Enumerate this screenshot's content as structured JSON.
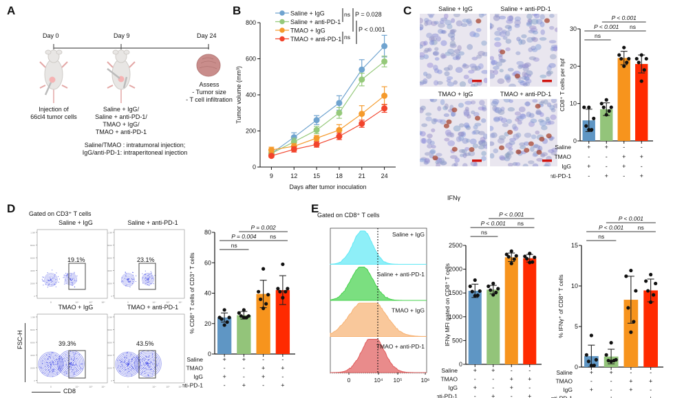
{
  "panel_labels": [
    "A",
    "B",
    "C",
    "D",
    "E"
  ],
  "panelA": {
    "timeline_days": [
      "Day 0",
      "Day 9",
      "Day 24"
    ],
    "step1": [
      "Injection of",
      "66cl4 tumor cells"
    ],
    "step2": [
      "Saline + IgG/",
      "Saline + anti-PD-1/",
      "TMAO + IgG/",
      "TMAO + anti-PD-1"
    ],
    "step3": [
      "Assess",
      "- Tumor size",
      "- T cell infiltration"
    ],
    "note": [
      "Saline/TMAO : intratumoral injection;",
      "IgG/anti-PD-1: intraperitoneal injection"
    ]
  },
  "groups": [
    "Saline + IgG",
    "Saline + anti-PD-1",
    "TMAO + IgG",
    "TMAO + anti-PD-1"
  ],
  "group_colors": {
    "line": [
      "#6fa3cf",
      "#95c97a",
      "#f59a2b",
      "#f2442c"
    ],
    "bar": [
      "#5f96c4",
      "#93c47a",
      "#f7941d",
      "#ff2a00"
    ]
  },
  "treatment_table": {
    "row_labels": [
      "Saline",
      "TMAO",
      "IgG",
      "Anti-PD-1"
    ],
    "rows": [
      [
        "+",
        "+",
        "-",
        "-"
      ],
      [
        "-",
        "-",
        "+",
        "+"
      ],
      [
        "+",
        "-",
        "+",
        "-"
      ],
      [
        "-",
        "+",
        "-",
        "+"
      ]
    ]
  },
  "panelC": {
    "image_titles": [
      "Saline + IgG",
      "Saline + anti-PD-1",
      "TMAO + IgG",
      "TMAO + anti-PD-1"
    ]
  },
  "panelD": {
    "gate_title": "Gated on CD3⁺ T cells",
    "plot_titles": [
      "Saline + IgG",
      "Saline + anti-PD-1",
      "TMAO + IgG",
      "TMAO + anti-PD-1"
    ],
    "percentages": [
      "19.1%",
      "23.1%",
      "39.3%",
      "43.5%"
    ],
    "y_axis": "FSC-H",
    "x_axis": "CD8"
  },
  "panelE": {
    "gate_title": "Gated on CD8⁺ T cells",
    "histogram_labels": [
      "Saline + IgG",
      "Saline + anti-PD-1",
      "TMAO + IgG",
      "TMAO + anti-PD-1"
    ],
    "histogram_colors": [
      "#5ee8f5",
      "#43d14a",
      "#f7b171",
      "#e05a5a"
    ],
    "x_ticks": [
      "0",
      "10⁴",
      "10⁵",
      "10⁶"
    ],
    "x_axis": "IFNγ",
    "section_title": "IFNγ"
  },
  "chart_data": [
    {
      "id": "B",
      "type": "line",
      "title": "",
      "xlabel": "Days after tumor inoculation",
      "ylabel": "Tumor volume (mm³)",
      "x": [
        9,
        12,
        15,
        18,
        21,
        24
      ],
      "xlim": [
        7.5,
        25.5
      ],
      "ylim": [
        0,
        800
      ],
      "yticks": [
        0,
        200,
        400,
        600,
        800
      ],
      "legend_position": "top-left",
      "series": [
        {
          "name": "Saline + IgG",
          "values": [
            75,
            165,
            260,
            355,
            540,
            670
          ],
          "err": [
            10,
            25,
            25,
            40,
            55,
            60
          ]
        },
        {
          "name": "Saline + anti-PD-1",
          "values": [
            75,
            140,
            205,
            300,
            485,
            585
          ],
          "err": [
            10,
            20,
            20,
            30,
            35,
            30
          ]
        },
        {
          "name": "TMAO + IgG",
          "values": [
            95,
            115,
            160,
            205,
            295,
            395
          ],
          "err": [
            15,
            15,
            15,
            30,
            45,
            50
          ]
        },
        {
          "name": "TMAO + anti-PD-1",
          "values": [
            62,
            98,
            125,
            170,
            240,
            325
          ],
          "err": [
            8,
            15,
            15,
            18,
            20,
            22
          ]
        }
      ],
      "annotations": [
        {
          "text": "ns",
          "between": [
            "Saline + IgG",
            "Saline + anti-PD-1"
          ]
        },
        {
          "text": "P = 0.028",
          "between": [
            "Saline + IgG",
            "TMAO + IgG"
          ]
        },
        {
          "text": "P < 0.001",
          "between": [
            "Saline + anti-PD-1",
            "TMAO + anti-PD-1"
          ]
        },
        {
          "text": "ns",
          "between": [
            "TMAO + IgG",
            "TMAO + anti-PD-1"
          ]
        }
      ]
    },
    {
      "id": "C",
      "type": "bar",
      "ylabel": "CD8⁺ T cells per hpf",
      "categories": [
        "Saline + IgG",
        "Saline + anti-PD-1",
        "TMAO + IgG",
        "TMAO + anti-PD-1"
      ],
      "values": [
        5.5,
        8.5,
        22.2,
        20.6
      ],
      "err": [
        3.0,
        1.7,
        1.8,
        2.4
      ],
      "points": [
        [
          9,
          9,
          6,
          4,
          3,
          3
        ],
        [
          11,
          10,
          9,
          9,
          8,
          7
        ],
        [
          25,
          23,
          22,
          22,
          21,
          20
        ],
        [
          23,
          22,
          22,
          21,
          19,
          16
        ]
      ],
      "ylim": [
        0,
        30
      ],
      "yticks": [
        0,
        10,
        20,
        30
      ],
      "annotations": [
        {
          "text": "ns",
          "from": 0,
          "to": 1,
          "level": 0
        },
        {
          "text": "P < 0.001",
          "from": 0,
          "to": 2,
          "level": 1
        },
        {
          "text": "ns",
          "from": 2,
          "to": 3,
          "level": 1
        },
        {
          "text": "P < 0.001",
          "from": 1,
          "to": 3,
          "level": 2
        }
      ]
    },
    {
      "id": "D",
      "type": "bar",
      "ylabel": "% CD8⁺ T cells of CD3⁺ T cells",
      "categories": [
        "Saline + IgG",
        "Saline + anti-PD-1",
        "TMAO + IgG",
        "TMAO + anti-PD-1"
      ],
      "values": [
        24,
        25.5,
        39.5,
        42
      ],
      "err": [
        3,
        2.5,
        9,
        9.5
      ],
      "points": [
        [
          29,
          24,
          24,
          23,
          21,
          19
        ],
        [
          29,
          27,
          25,
          25,
          24,
          24
        ],
        [
          56,
          41,
          39,
          36,
          33,
          30
        ],
        [
          59,
          43,
          43,
          41,
          41,
          37
        ]
      ],
      "ylim": [
        0,
        80
      ],
      "yticks": [
        0,
        20,
        40,
        60,
        80
      ],
      "annotations": [
        {
          "text": "ns",
          "from": 0,
          "to": 1,
          "level": 0
        },
        {
          "text": "P = 0.004",
          "from": 0,
          "to": 2,
          "level": 1
        },
        {
          "text": "ns",
          "from": 2,
          "to": 3,
          "level": 1
        },
        {
          "text": "P = 0.002",
          "from": 1,
          "to": 3,
          "level": 2
        }
      ]
    },
    {
      "id": "E1",
      "type": "bar",
      "ylabel": "IFNγ MFI gated on CD8⁺ T cells",
      "categories": [
        "Saline + IgG",
        "Saline + anti-PD-1",
        "TMAO + IgG",
        "TMAO + anti-PD-1"
      ],
      "values": [
        1545,
        1570,
        2250,
        2230
      ],
      "err": [
        140,
        90,
        90,
        80
      ],
      "points": [
        [
          1770,
          1640,
          1540,
          1530,
          1450,
          1440
        ],
        [
          1700,
          1640,
          1590,
          1560,
          1510,
          1460
        ],
        [
          2380,
          2310,
          2280,
          2260,
          2210,
          2120
        ],
        [
          2330,
          2270,
          2250,
          2220,
          2150,
          2140
        ]
      ],
      "ylim": [
        0,
        2500
      ],
      "yticks": [
        0,
        500,
        1000,
        1500,
        2000,
        2500
      ],
      "annotations": [
        {
          "text": "ns",
          "from": 0,
          "to": 1,
          "level": 0
        },
        {
          "text": "P < 0.001",
          "from": 0,
          "to": 2,
          "level": 1
        },
        {
          "text": "ns",
          "from": 2,
          "to": 3,
          "level": 1
        },
        {
          "text": "P < 0.001",
          "from": 1,
          "to": 3,
          "level": 2
        }
      ]
    },
    {
      "id": "E2",
      "type": "bar",
      "ylabel": "% IFNγ⁺ of CD8⁺ T cells",
      "categories": [
        "Saline + IgG",
        "Saline + anti-PD-1",
        "TMAO + IgG",
        "TMAO + anti-PD-1"
      ],
      "values": [
        1.35,
        1.3,
        8.3,
        9.45
      ],
      "err": [
        1.35,
        0.9,
        2.9,
        1.4
      ],
      "points": [
        [
          3.9,
          1.5,
          0.9,
          0.7,
          0.2,
          0.2
        ],
        [
          3.0,
          1.5,
          0.9,
          0.8,
          0.8,
          0.7
        ],
        [
          11.9,
          11.2,
          9.4,
          7.3,
          5.6,
          4.3
        ],
        [
          11.4,
          10.6,
          10.3,
          9.4,
          8.9,
          8.0
        ]
      ],
      "ylim": [
        0,
        15
      ],
      "yticks": [
        0,
        5,
        10,
        15
      ],
      "annotations": [
        {
          "text": "ns",
          "from": 0,
          "to": 1,
          "level": 0
        },
        {
          "text": "P < 0.001",
          "from": 0,
          "to": 2,
          "level": 1
        },
        {
          "text": "ns",
          "from": 2,
          "to": 3,
          "level": 1
        },
        {
          "text": "P < 0.001",
          "from": 1,
          "to": 3,
          "level": 2
        }
      ]
    }
  ]
}
